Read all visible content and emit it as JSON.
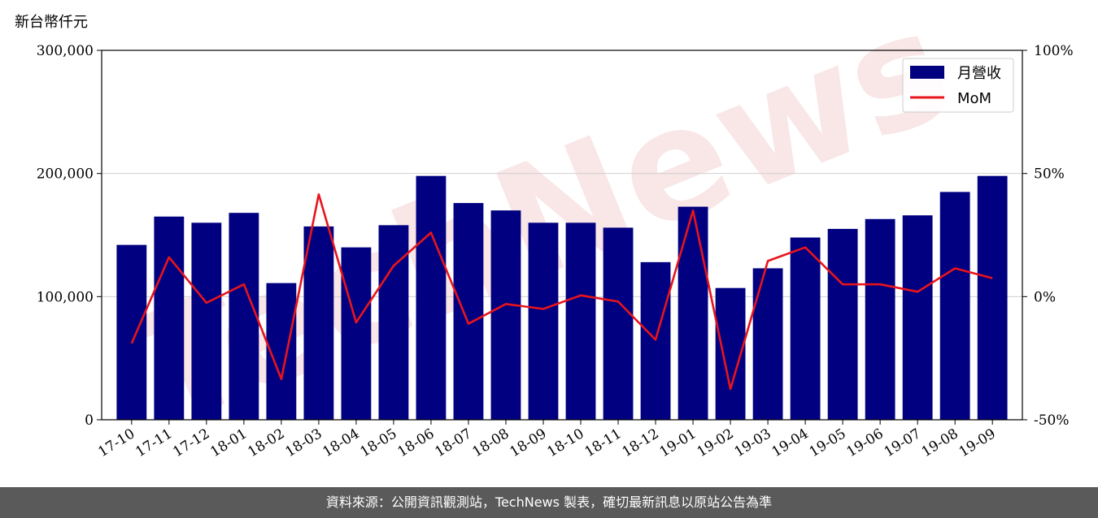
{
  "watermark": "TechNews",
  "footer": {
    "source_text": "資料來源：公開資訊觀測站，TechNews 製表，確切最新訊息以原站公告為準"
  },
  "chart_data": {
    "type": "bar",
    "unit_label": "新台幣仟元",
    "categories": [
      "17-10",
      "17-11",
      "17-12",
      "18-01",
      "18-02",
      "18-03",
      "18-04",
      "18-05",
      "18-06",
      "18-07",
      "18-08",
      "18-09",
      "18-10",
      "18-11",
      "18-12",
      "19-01",
      "19-02",
      "19-03",
      "19-04",
      "19-05",
      "19-06",
      "19-07",
      "19-08",
      "19-09"
    ],
    "series": [
      {
        "name": "月營收",
        "axis": "left",
        "type": "bar",
        "color": "#000080",
        "values": [
          142000,
          165000,
          160000,
          168000,
          111000,
          157000,
          140000,
          158000,
          198000,
          176000,
          170000,
          160000,
          160000,
          156000,
          128000,
          173000,
          107000,
          123000,
          148000,
          155000,
          163000,
          166000,
          185000,
          198000
        ]
      },
      {
        "name": "MoM",
        "axis": "right",
        "type": "line",
        "color": "#e8141c",
        "values": [
          -19,
          16,
          -2.5,
          5,
          -33.5,
          41.5,
          -10.5,
          12.5,
          26,
          -11,
          -3,
          -5,
          0.5,
          -2,
          -17.5,
          35,
          -37.5,
          14.5,
          20,
          5,
          5,
          2,
          11.5,
          7.5
        ]
      }
    ],
    "y_left": {
      "ylim": [
        0,
        300000
      ],
      "ticks": [
        0,
        100000,
        200000,
        300000
      ],
      "tick_labels": [
        "0",
        "100,000",
        "200,000",
        "300,000"
      ]
    },
    "y_right": {
      "ylim": [
        -50,
        100
      ],
      "ticks": [
        -50,
        0,
        50,
        100
      ],
      "tick_labels": [
        "-50%",
        "0%",
        "50%",
        "100%"
      ]
    },
    "grid": {
      "horizontal": true,
      "vertical": false
    },
    "legend": {
      "position": "top-right"
    }
  }
}
